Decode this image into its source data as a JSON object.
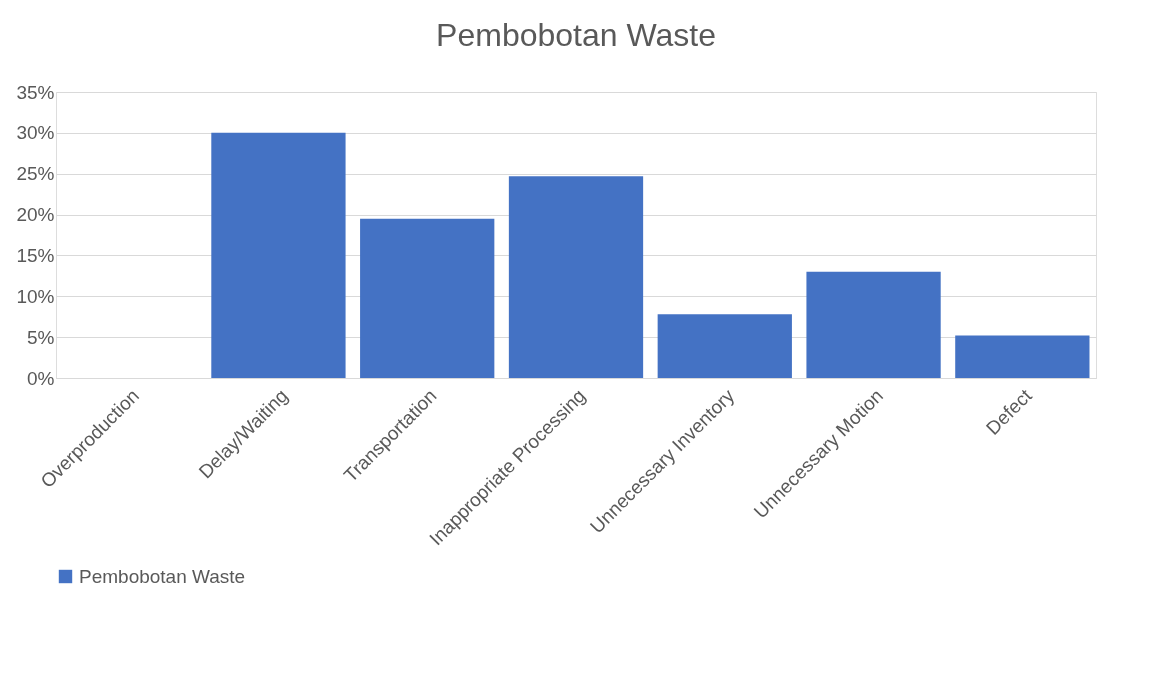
{
  "chart_data": {
    "type": "bar",
    "title": "Pembobotan Waste",
    "categories": [
      "Overproduction",
      "Delay/Waiting",
      "Transportation",
      "Inappropriate Processing",
      "Unnecessary Inventory",
      "Unnecessary Motion",
      "Defect"
    ],
    "series": [
      {
        "name": "Pembobotan Waste",
        "color": "#4472c4",
        "values": [
          0,
          30.0,
          19.5,
          24.7,
          7.8,
          13.0,
          5.2
        ]
      }
    ],
    "ylim": [
      0,
      35
    ],
    "yticks": [
      {
        "value": 0,
        "label": "0%"
      },
      {
        "value": 5,
        "label": "5%"
      },
      {
        "value": 10,
        "label": "10%"
      },
      {
        "value": 15,
        "label": "15%"
      },
      {
        "value": 20,
        "label": "20%"
      },
      {
        "value": 25,
        "label": "25%"
      },
      {
        "value": 30,
        "label": "30%"
      },
      {
        "value": 35,
        "label": "35%"
      }
    ],
    "grid": "y",
    "legend": "bottom"
  }
}
